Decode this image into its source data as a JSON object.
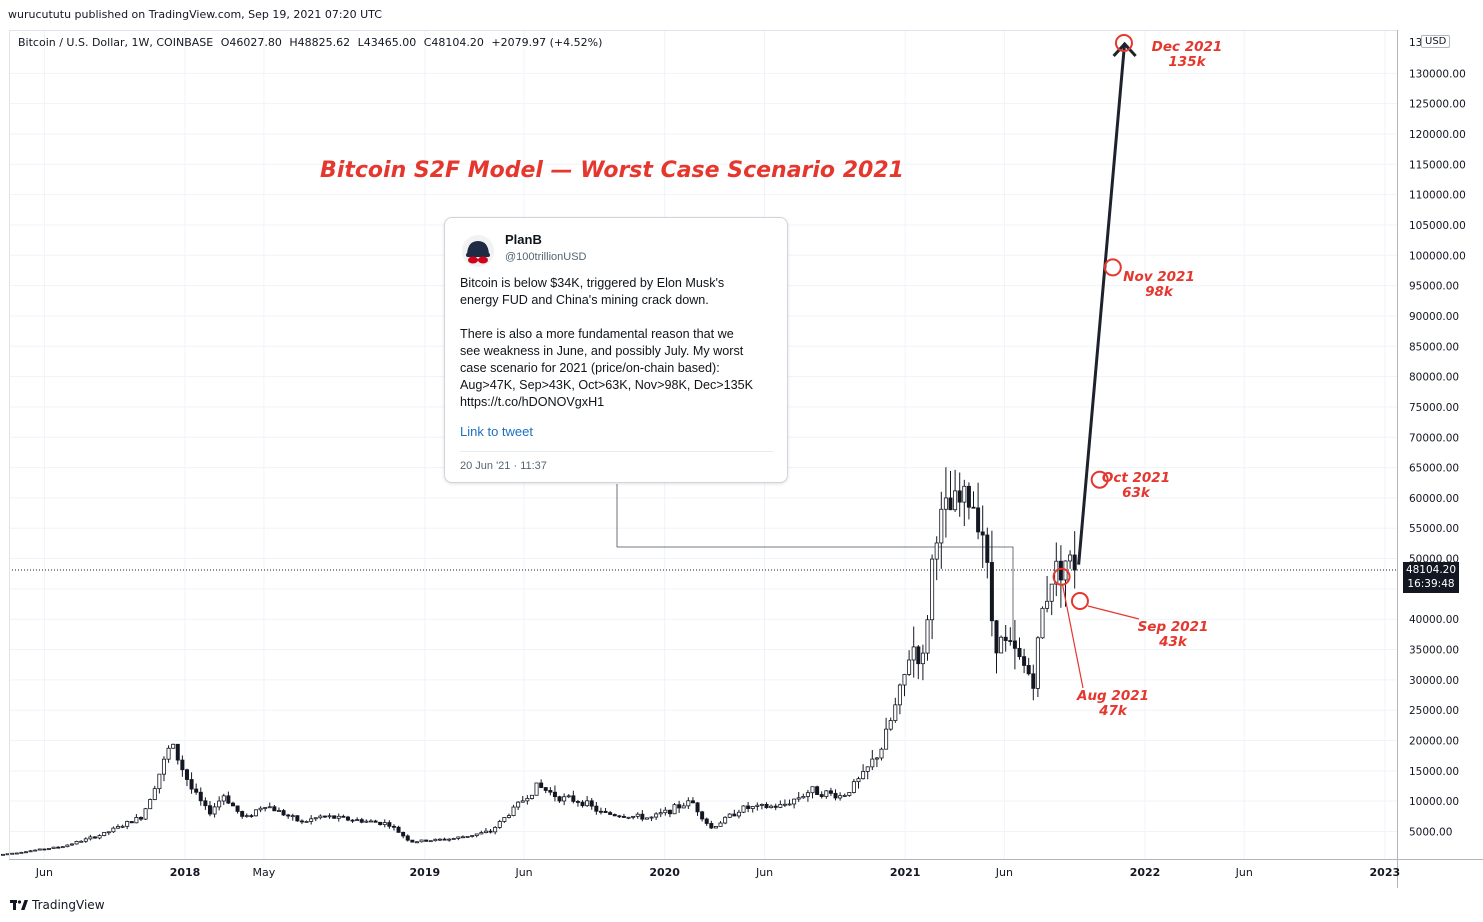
{
  "header": {
    "published": "wurucututu published on TradingView.com, Sep 19, 2021 07:20 UTC"
  },
  "legend": {
    "symbol": "Bitcoin / U.S. Dollar, 1W, COINBASE",
    "open": "O46027.80",
    "high": "H48825.62",
    "low": "L43465.00",
    "close": "C48104.20",
    "change": "+2079.97 (+4.52%)"
  },
  "axis": {
    "currency": "USD",
    "top_partial_label": "13",
    "last_price": "48104.20",
    "countdown": "16:39:48",
    "y_ticks": [
      "5000.00",
      "10000.00",
      "15000.00",
      "20000.00",
      "25000.00",
      "30000.00",
      "35000.00",
      "40000.00",
      "45000.00",
      "50000.00",
      "55000.00",
      "60000.00",
      "65000.00",
      "70000.00",
      "75000.00",
      "80000.00",
      "85000.00",
      "90000.00",
      "95000.00",
      "100000.00",
      "105000.00",
      "110000.00",
      "115000.00",
      "120000.00",
      "125000.00",
      "130000.00"
    ]
  },
  "title": "Bitcoin S2F Model — Worst Case Scenario 2021",
  "tweet": {
    "name": "PlanB",
    "handle": "@100trillionUSD",
    "text": "Bitcoin is below $34K, triggered by Elon Musk's\nenergy FUD and China's mining crack down.\n\nThere is also a more fundamental reason that we\nsee weakness in June, and possibly July. My worst\ncase scenario for 2021 (price/on-chain based):\nAug>47K, Sep>43K, Oct>63K, Nov>98K, Dec>135K\nhttps://t.co/hDONOVgxH1",
    "link_label": "Link to tweet",
    "date": "20 Jun '21 · 11:37"
  },
  "annotations": [
    {
      "month": "Aug 2021",
      "target": "47k"
    },
    {
      "month": "Sep 2021",
      "target": "43k"
    },
    {
      "month": "Oct 2021",
      "target": "63k"
    },
    {
      "month": "Nov 2021",
      "target": "98k"
    },
    {
      "month": "Dec 2021",
      "target": "135k"
    }
  ],
  "brand": {
    "name": "TradingView"
  },
  "colors": {
    "annotation": "#e5372e",
    "projection": "#1e222d",
    "candle_up": "#ffffff",
    "candle_down": "#131722",
    "grid": "#f0f3fa"
  },
  "chart_data": {
    "type": "candlestick",
    "title": "Bitcoin S2F Model — Worst Case Scenario 2021",
    "xlabel": "",
    "ylabel": "",
    "ylim": [
      -1500,
      136000
    ],
    "x_ticks": [
      {
        "label": "Jun",
        "date": "2017-06"
      },
      {
        "label": "2018",
        "date": "2018-01"
      },
      {
        "label": "May",
        "date": "2018-05"
      },
      {
        "label": "2019",
        "date": "2019-01"
      },
      {
        "label": "Jun",
        "date": "2019-06"
      },
      {
        "label": "2020",
        "date": "2020-01"
      },
      {
        "label": "Jun",
        "date": "2020-06"
      },
      {
        "label": "2021",
        "date": "2021-01"
      },
      {
        "label": "Jun",
        "date": "2021-06"
      },
      {
        "label": "2022",
        "date": "2022-01"
      },
      {
        "label": "Jun",
        "date": "2022-06"
      },
      {
        "label": "2023",
        "date": "2023-01"
      }
    ],
    "price_path": [
      {
        "date": "2017-04-01",
        "close": 1200
      },
      {
        "date": "2017-07-01",
        "close": 2500
      },
      {
        "date": "2017-09-01",
        "close": 4500
      },
      {
        "date": "2017-11-01",
        "close": 7500
      },
      {
        "date": "2017-12-15",
        "close": 19500
      },
      {
        "date": "2018-01-15",
        "close": 12000
      },
      {
        "date": "2018-02-10",
        "close": 8000
      },
      {
        "date": "2018-03-05",
        "close": 11000
      },
      {
        "date": "2018-04-05",
        "close": 7000
      },
      {
        "date": "2018-05-05",
        "close": 9500
      },
      {
        "date": "2018-07-01",
        "close": 6500
      },
      {
        "date": "2018-08-01",
        "close": 7500
      },
      {
        "date": "2018-11-10",
        "close": 6300
      },
      {
        "date": "2018-12-15",
        "close": 3300
      },
      {
        "date": "2019-02-15",
        "close": 3800
      },
      {
        "date": "2019-04-15",
        "close": 5000
      },
      {
        "date": "2019-06-25",
        "close": 12500
      },
      {
        "date": "2019-08-01",
        "close": 10500
      },
      {
        "date": "2019-09-01",
        "close": 10000
      },
      {
        "date": "2019-10-01",
        "close": 8000
      },
      {
        "date": "2019-12-15",
        "close": 7200
      },
      {
        "date": "2020-02-15",
        "close": 10000
      },
      {
        "date": "2020-03-15",
        "close": 5500
      },
      {
        "date": "2020-05-01",
        "close": 8800
      },
      {
        "date": "2020-07-01",
        "close": 9200
      },
      {
        "date": "2020-08-15",
        "close": 11800
      },
      {
        "date": "2020-10-01",
        "close": 10800
      },
      {
        "date": "2020-11-01",
        "close": 14000
      },
      {
        "date": "2020-12-01",
        "close": 19000
      },
      {
        "date": "2021-01-01",
        "close": 29000
      },
      {
        "date": "2021-01-15",
        "close": 36000
      },
      {
        "date": "2021-02-01",
        "close": 33000
      },
      {
        "date": "2021-02-20",
        "close": 55000
      },
      {
        "date": "2021-03-15",
        "close": 58000
      },
      {
        "date": "2021-04-14",
        "close": 60000
      },
      {
        "date": "2021-05-01",
        "close": 57000
      },
      {
        "date": "2021-05-20",
        "close": 37000
      },
      {
        "date": "2021-06-15",
        "close": 35000
      },
      {
        "date": "2021-07-20",
        "close": 30000
      },
      {
        "date": "2021-08-01",
        "close": 41000
      },
      {
        "date": "2021-08-15",
        "close": 47000
      },
      {
        "date": "2021-09-05",
        "close": 50000
      },
      {
        "date": "2021-09-19",
        "close": 48104.2
      }
    ],
    "projection": [
      {
        "date": "2021-09-22",
        "value": 49000
      },
      {
        "date": "2021-12-01",
        "value": 135000
      }
    ],
    "targets": [
      {
        "label": "Aug 2021",
        "date": "2021-08-27",
        "value": 47000
      },
      {
        "label": "Sep 2021",
        "date": "2021-09-24",
        "value": 43000
      },
      {
        "label": "Oct 2021",
        "date": "2021-10-24",
        "value": 63000
      },
      {
        "label": "Nov 2021",
        "date": "2021-11-13",
        "value": 98000
      },
      {
        "label": "Dec 2021",
        "date": "2021-11-30",
        "value": 135000
      }
    ],
    "last_close": 48104.2,
    "grid": true
  }
}
